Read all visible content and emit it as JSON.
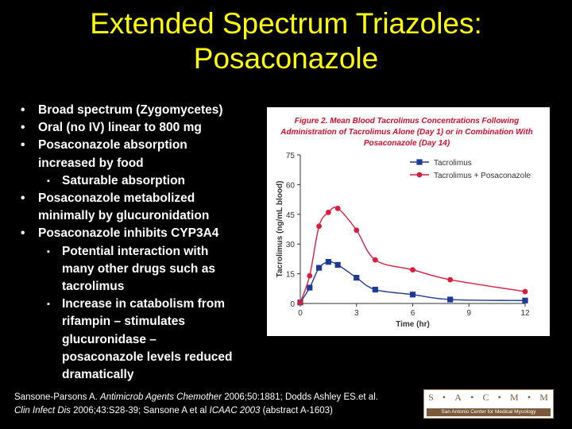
{
  "slide": {
    "title_line1": "Extended Spectrum Triazoles:",
    "title_line2": "Posaconazole"
  },
  "bullets": {
    "b1": "Broad spectrum (Zygomycetes)",
    "b2": "Oral (no IV)  linear to 800 mg",
    "b3_l1": "Posaconazole absorption",
    "b3_l2": "increased by food",
    "b3_s1": "Saturable absorption",
    "b4_l1": "Posaconazole metabolized",
    "b4_l2": "minimally by glucuronidation",
    "b5": "Posaconazole inhibits CYP3A4",
    "b5_s1_l1": "Potential interaction with",
    "b5_s1_l2": "many other drugs such as",
    "b5_s1_l3": "tacrolimus",
    "b5_s2_l1": "Increase in catabolism from",
    "b5_s2_l2": "rifampin – stimulates",
    "b5_s2_l3": "glucuronidase –",
    "b5_s2_l4": "posaconazole levels reduced",
    "b5_s2_l5": "dramatically",
    "bullet_glyph": "•",
    "sub_glyph": "▪"
  },
  "citation": {
    "p1": "Sansone-Parsons A. ",
    "j1": "Antimicrob Agents Chemother",
    "p2": " 2006;50:1881; Dodds Ashley ES.et al.",
    "j2": "Clin Infect Dis",
    "p3": " 2006;43:S28-39; Sansone A et al ",
    "j3": "ICAAC 2003",
    "p4": " (abstract A-1603)"
  },
  "logo": {
    "letters": [
      "S",
      "•",
      "A",
      "•",
      "C",
      "•",
      "M",
      "•",
      "M"
    ],
    "subtitle": "San Antonio Center for Medical Mycology"
  },
  "chart_data": {
    "type": "line",
    "title_lines": [
      "Figure 2. Mean Blood Tacrolimus Concentrations Following",
      "Administration of Tacrolimus Alone (Day 1) or in Combination With",
      "Posaconazole (Day 14)"
    ],
    "xlabel": "Time (hr)",
    "ylabel": "Tacrolimus (ng/mL blood)",
    "xlim": [
      0,
      12
    ],
    "ylim": [
      0,
      75
    ],
    "xticks": [
      0,
      3,
      6,
      9,
      12
    ],
    "yticks": [
      0,
      15,
      30,
      45,
      60,
      75
    ],
    "legend_position": "top-right",
    "colors": {
      "title": "#c8102e",
      "posaconazole": "#d71e3c",
      "tacrolimus": "#1e3a96",
      "axis": "#333333"
    },
    "series": [
      {
        "name": "Tacrolimus",
        "marker": "square",
        "x": [
          0,
          0.5,
          1,
          1.5,
          2,
          3,
          4,
          6,
          8,
          12
        ],
        "y": [
          0.5,
          8,
          18,
          21,
          19.5,
          13,
          7,
          4.5,
          2,
          1.5
        ]
      },
      {
        "name": "Tacrolimus + Posaconazole",
        "marker": "circle",
        "x": [
          0,
          0.5,
          1,
          1.5,
          2,
          3,
          4,
          6,
          8,
          12
        ],
        "y": [
          0.5,
          14,
          39,
          46,
          48,
          37,
          22,
          17,
          12,
          6
        ]
      }
    ]
  }
}
